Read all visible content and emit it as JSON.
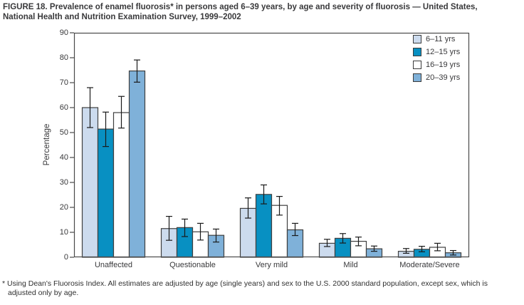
{
  "figure": {
    "title_line1": "FIGURE 18. Prevalence of enamel fluorosis* in persons aged 6–39 years, by age and severity of fluorosis — United States,",
    "title_line2": "National Health and Nutrition Examination Survey, 1999–2002",
    "footnote_marker": "*",
    "footnote_line1": "Using Dean's Fluorosis Index. All estimates are adjusted by age (single years) and sex to the U.S. 2000 standard population, except sex, which is",
    "footnote_line2": "adjusted only by age."
  },
  "chart_data": {
    "type": "bar",
    "title": "FIGURE 18. Prevalence of enamel fluorosis in persons aged 6–39 years, by age and severity of fluorosis — United States, National Health and Nutrition Examination Survey, 1999–2002",
    "xlabel": "",
    "ylabel": "Percentage",
    "ylim": [
      0,
      90
    ],
    "ytick_step": 10,
    "grid": false,
    "legend_position": "inside-top-right",
    "categories": [
      "Unaffected",
      "Questionable",
      "Very mild",
      "Mild",
      "Moderate/Severe"
    ],
    "series": [
      {
        "name": "6–11 yrs",
        "color": "#ccdbee",
        "values": [
          60.0,
          11.5,
          19.6,
          5.6,
          2.4
        ],
        "err_low": [
          52.0,
          6.8,
          15.7,
          4.3,
          1.6
        ],
        "err_high": [
          68.0,
          16.4,
          23.8,
          7.2,
          3.5
        ]
      },
      {
        "name": "12–15 yrs",
        "color": "#0890c2",
        "values": [
          51.4,
          11.9,
          25.2,
          7.6,
          3.2
        ],
        "err_low": [
          44.4,
          8.3,
          21.4,
          5.7,
          2.2
        ],
        "err_high": [
          58.2,
          15.3,
          29.0,
          9.5,
          4.4
        ]
      },
      {
        "name": "16–19 yrs",
        "color": "#ffffff",
        "values": [
          58.0,
          10.2,
          20.8,
          6.4,
          4.0
        ],
        "err_low": [
          51.8,
          6.9,
          16.9,
          4.6,
          2.6
        ],
        "err_high": [
          64.5,
          13.6,
          24.4,
          8.1,
          5.6
        ]
      },
      {
        "name": "20–39 yrs",
        "color": "#7fb1d9",
        "values": [
          74.7,
          8.8,
          11.0,
          3.4,
          1.8
        ],
        "err_low": [
          70.2,
          6.1,
          8.7,
          2.4,
          0.9
        ],
        "err_high": [
          79.1,
          11.3,
          13.6,
          4.5,
          2.7
        ]
      }
    ],
    "colors": {
      "bar_outline": "#3f3f3f",
      "axis": "#4a4a4a",
      "error_bar": "#1a1a1a"
    }
  }
}
